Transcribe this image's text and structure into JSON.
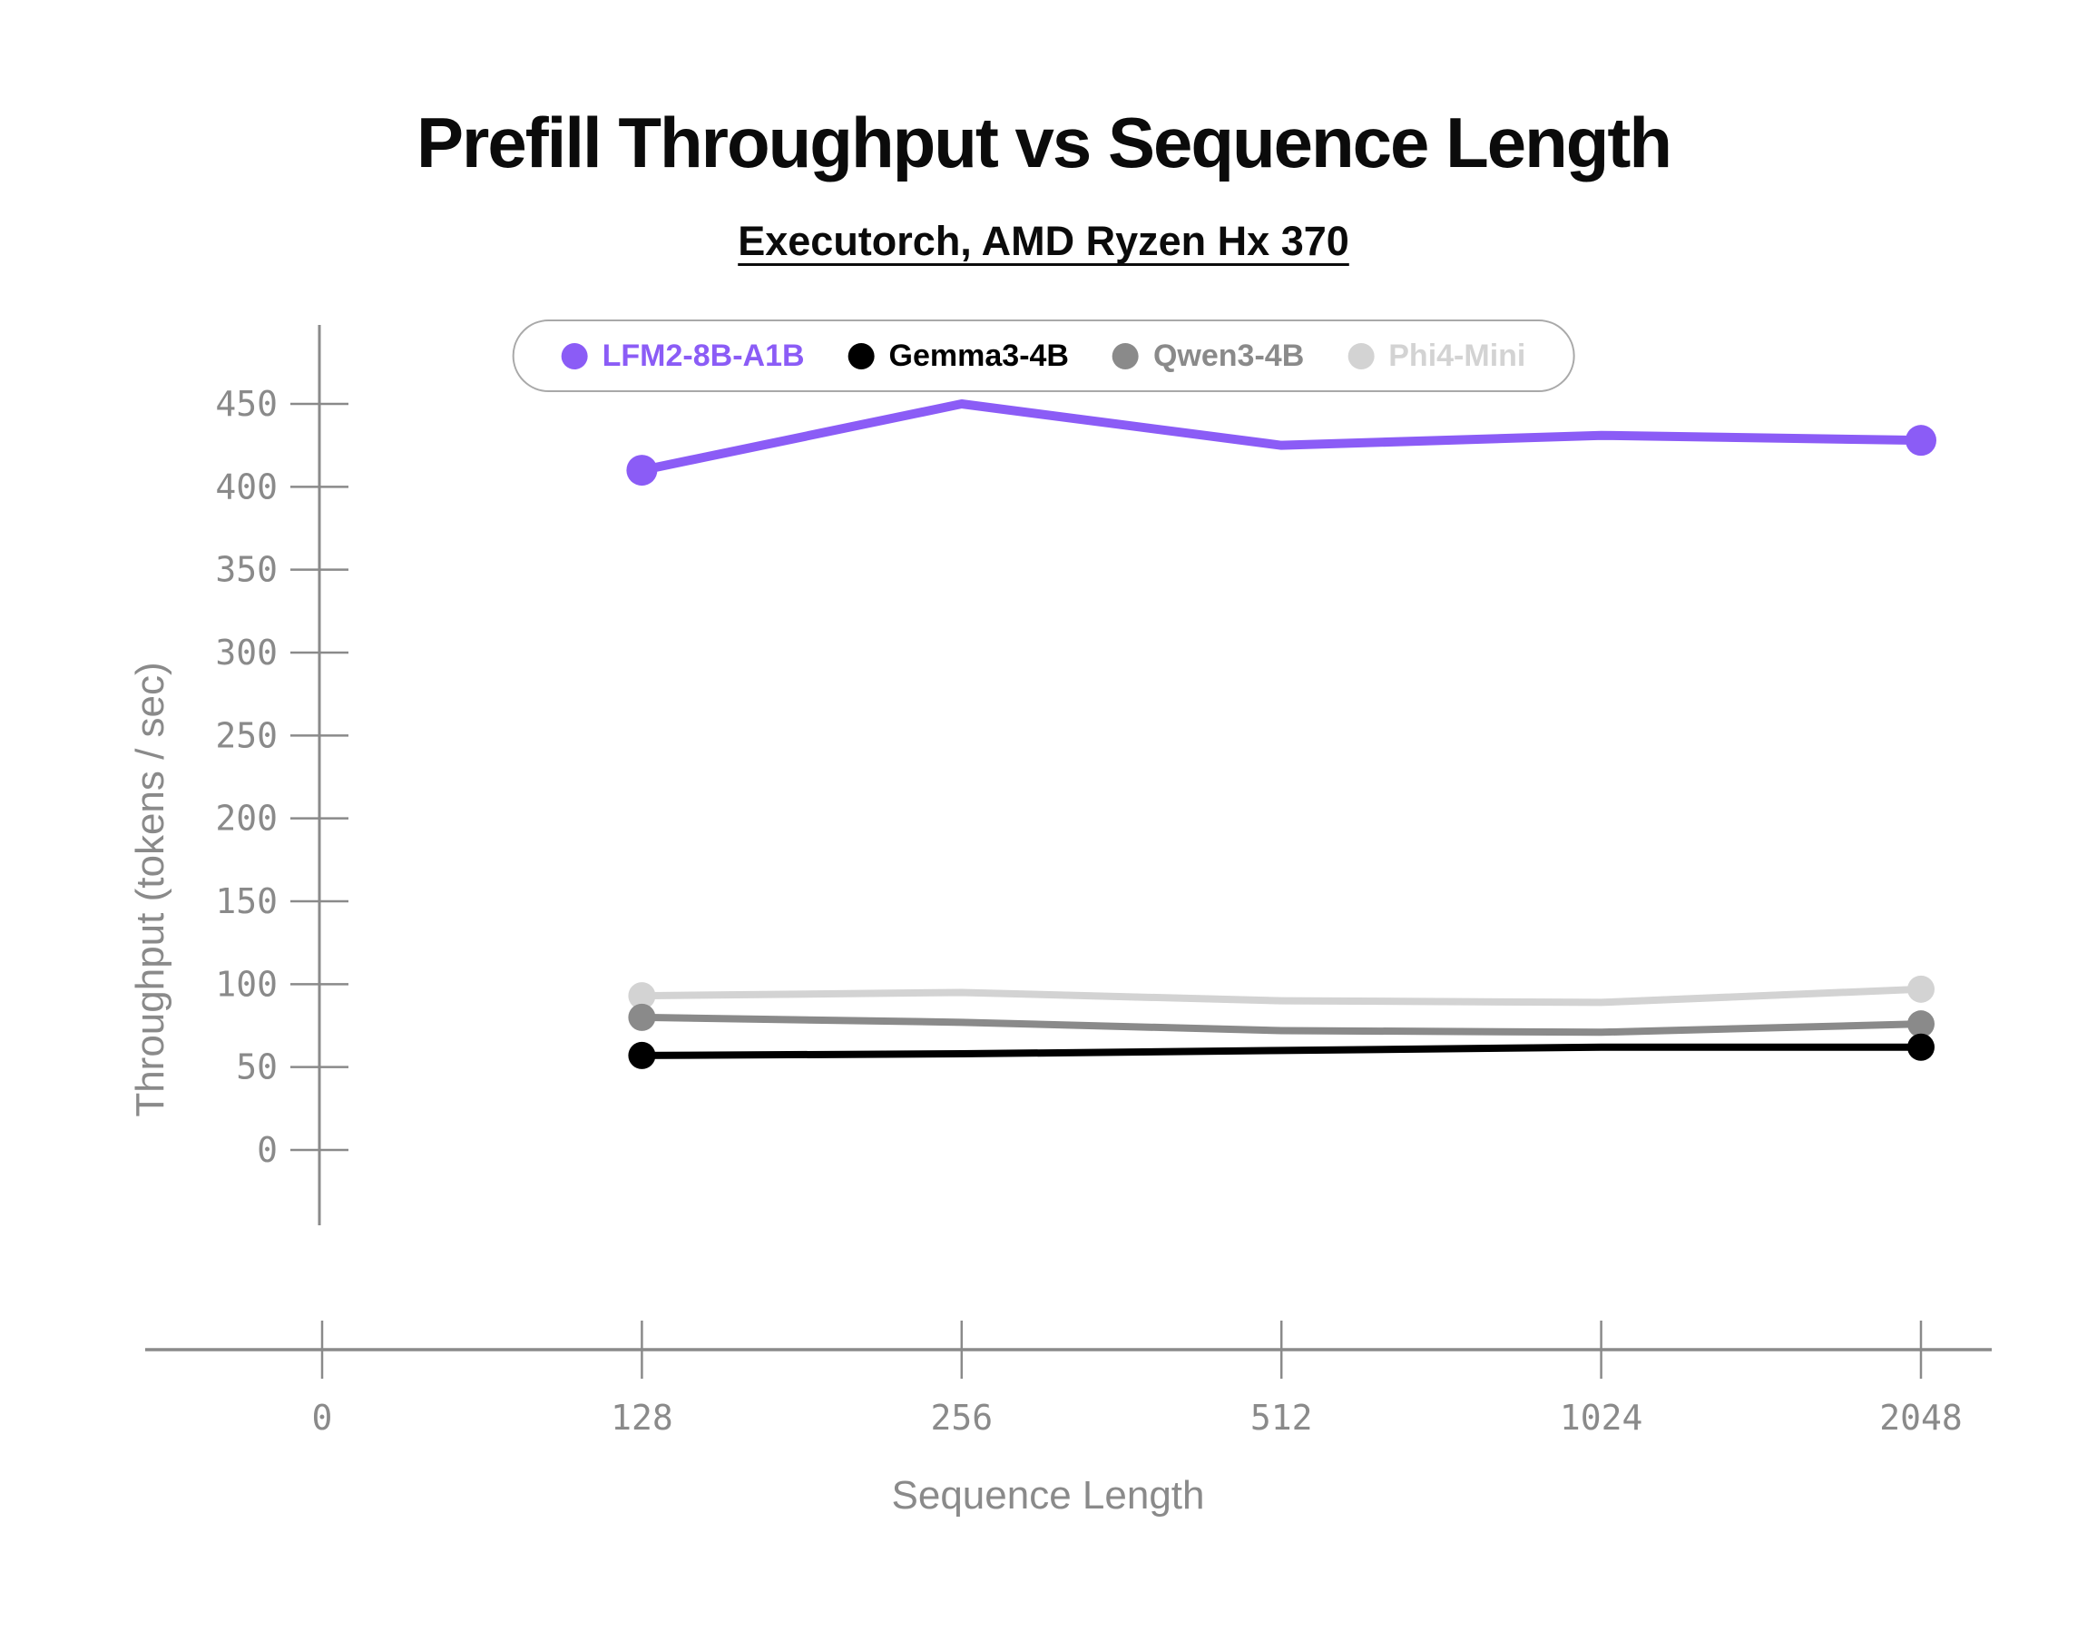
{
  "header": {
    "title": "Prefill Throughput vs Sequence Length",
    "subtitle": "Executorch, AMD Ryzen Hx 370"
  },
  "chart_data": {
    "type": "line",
    "title": "Prefill Throughput vs Sequence Length",
    "subtitle": "Executorch, AMD Ryzen Hx 370",
    "xlabel": "Sequence Length",
    "ylabel": "Throughput (tokens / sec)",
    "x_tick_labels": [
      "0",
      "128",
      "256",
      "512",
      "1024",
      "2048"
    ],
    "categories": [
      128,
      256,
      512,
      1024,
      2048
    ],
    "y_ticks": [
      0,
      50,
      100,
      150,
      200,
      250,
      300,
      350,
      400,
      450
    ],
    "ylim": [
      0,
      475
    ],
    "grid": false,
    "legend_position": "top-center",
    "markers": "endpoints-only",
    "axis_color": "#8a8a8a",
    "series": [
      {
        "name": "LFM2-8B-A1B",
        "color": "#8b5cf6",
        "line_width": 10,
        "marker_radius": 17,
        "values": [
          410,
          450,
          425,
          431,
          428
        ]
      },
      {
        "name": "Gemma3-4B",
        "color": "#000000",
        "line_width": 8,
        "marker_radius": 15,
        "values": [
          57,
          58,
          60,
          62,
          62
        ]
      },
      {
        "name": "Qwen3-4B",
        "color": "#8a8a8a",
        "line_width": 8,
        "marker_radius": 15,
        "values": [
          80,
          77,
          72,
          71,
          76
        ]
      },
      {
        "name": "Phi4-Mini",
        "color": "#d3d3d3",
        "line_width": 8,
        "marker_radius": 15,
        "values": [
          93,
          95,
          90,
          89,
          97
        ]
      }
    ]
  }
}
